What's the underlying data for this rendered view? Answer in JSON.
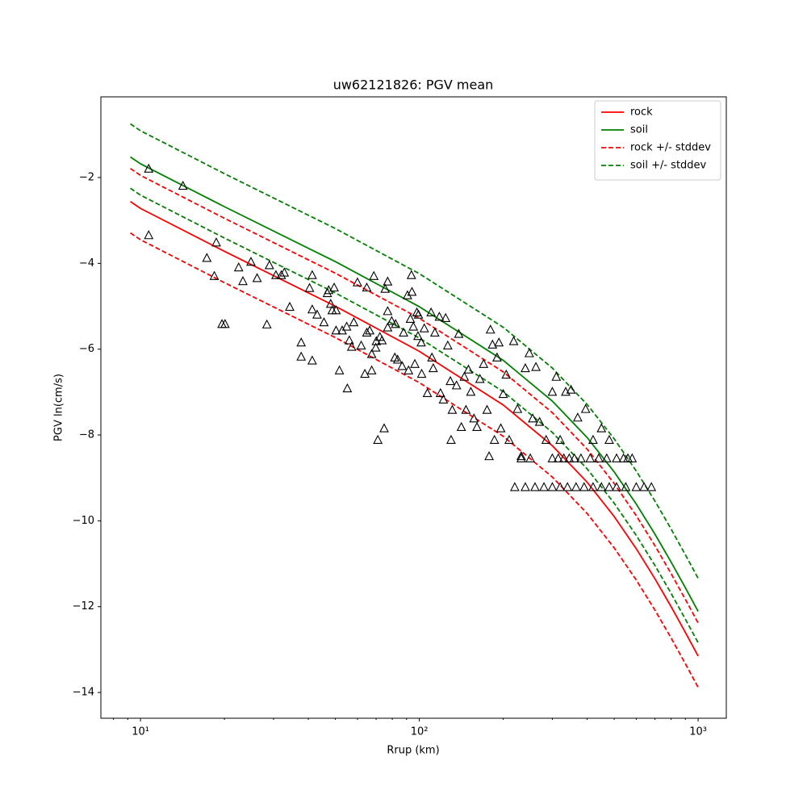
{
  "chart_data": {
    "type": "line",
    "title": "uw62121826: PGV mean",
    "x_label": "Rrup (km)",
    "y_label": "PGV ln(cm/s)",
    "xscale": "log",
    "xlim": [
      7.21,
      1262
    ],
    "ylim": [
      -14.6,
      -0.12
    ],
    "xticks": [
      {
        "value": 10,
        "label": "10¹"
      },
      {
        "value": 100,
        "label": "10²"
      },
      {
        "value": 1000,
        "label": "10³"
      }
    ],
    "xminorticks": [
      8,
      9,
      20,
      30,
      40,
      50,
      60,
      70,
      80,
      90,
      200,
      300,
      400,
      500,
      600,
      700,
      800,
      900
    ],
    "yticks": [
      {
        "value": -14,
        "label": "−14"
      },
      {
        "value": -12,
        "label": "−12"
      },
      {
        "value": -10,
        "label": "−10"
      },
      {
        "value": -8,
        "label": "−8"
      },
      {
        "value": -6,
        "label": "−6"
      },
      {
        "value": -4,
        "label": "−4"
      },
      {
        "value": -2,
        "label": "−2"
      }
    ],
    "legend": "upper right",
    "x": [
      9.2,
      10,
      20,
      50,
      100,
      200,
      300,
      400,
      500,
      600,
      700,
      800,
      900,
      1000
    ],
    "series": [
      {
        "name": "rock",
        "color": "#ff0000",
        "dashed": false,
        "values": [
          -2.56,
          -2.72,
          -3.72,
          -5.0,
          -6.05,
          -7.3,
          -8.25,
          -9.1,
          -9.9,
          -10.65,
          -11.35,
          -12.0,
          -12.6,
          -13.15
        ]
      },
      {
        "name": "soil",
        "color": "#008000",
        "dashed": false,
        "values": [
          -1.52,
          -1.68,
          -2.68,
          -3.96,
          -5.01,
          -6.26,
          -7.21,
          -8.06,
          -8.86,
          -9.61,
          -10.31,
          -10.96,
          -11.56,
          -12.11
        ]
      },
      {
        "name": "rock +/- stddev",
        "color": "#ff0000",
        "dashed": true,
        "upper": [
          -1.79,
          -1.95,
          -2.95,
          -4.23,
          -5.28,
          -6.53,
          -7.48,
          -8.33,
          -9.13,
          -9.88,
          -10.58,
          -11.23,
          -11.83,
          -12.38
        ],
        "lower": [
          -3.29,
          -3.45,
          -4.45,
          -5.73,
          -6.78,
          -8.03,
          -8.98,
          -9.83,
          -10.63,
          -11.38,
          -12.08,
          -12.73,
          -13.33,
          -13.88
        ]
      },
      {
        "name": "soil +/- stddev",
        "color": "#008000",
        "dashed": true,
        "upper": [
          -0.75,
          -0.91,
          -1.91,
          -3.19,
          -4.24,
          -5.49,
          -6.44,
          -7.29,
          -8.09,
          -8.84,
          -9.54,
          -10.19,
          -10.79,
          -11.34
        ],
        "lower": [
          -2.25,
          -2.41,
          -3.41,
          -4.69,
          -5.74,
          -6.99,
          -7.94,
          -8.79,
          -9.59,
          -10.34,
          -11.04,
          -11.69,
          -12.29,
          -12.84
        ]
      }
    ],
    "scatter": {
      "marker": "triangle",
      "color": "#000000",
      "x": [
        10.7,
        14.2,
        10.7,
        17.3,
        18.4,
        18.7,
        19.6,
        20.1,
        22.5,
        23.3,
        24.9,
        26.2,
        28.4,
        29.0,
        30.6,
        32.0,
        32.8,
        34.3,
        37.7,
        37.7,
        40.4,
        41.3,
        41.3,
        41.3,
        43.0,
        45.5,
        46.8,
        47.3,
        48.1,
        48.7,
        49.5,
        50.3,
        50.3,
        51.7,
        52.9,
        54.9,
        55.2,
        56.1,
        57.2,
        58.2,
        60.0,
        61.9,
        63.8,
        64.8,
        64.8,
        66.4,
        67.5,
        67.5,
        68.7,
        69.8,
        70.1,
        71.0,
        72.2,
        73.5,
        74.8,
        75.4,
        77.0,
        77.0,
        77.0,
        79.6,
        81.7,
        82.2,
        83.6,
        86.8,
        87.8,
        90.7,
        91.5,
        92.9,
        93.7,
        94.1,
        95.2,
        96.4,
        98.0,
        98.9,
        99.3,
        101.6,
        102.0,
        104.2,
        106.9,
        110.2,
        111.0,
        112.2,
        113.7,
        118.0,
        119.1,
        122.0,
        124.3,
        126.5,
        129.2,
        130.0,
        131.3,
        136.0,
        138.5,
        141.5,
        145.0,
        147.0,
        150.0,
        153.0,
        157.0,
        161.0,
        165.0,
        170.0,
        175.0,
        178.0,
        180.0,
        183.0,
        186.0,
        190.0,
        193.0,
        196.0,
        200.0,
        205.0,
        210.0,
        218.0,
        225.0,
        232.0,
        240.0,
        248.0,
        255.0,
        262.0,
        270.0,
        285.0,
        300.0,
        310.0,
        320.0,
        335.0,
        350.0,
        370.0,
        395.0,
        420.0,
        450.0,
        480.0,
        232,
        250,
        300,
        315,
        330,
        345,
        360,
        380,
        410,
        440,
        470,
        510,
        540,
        560,
        580,
        220,
        240,
        260,
        280,
        300,
        320,
        340,
        365,
        390,
        420,
        450,
        480,
        510,
        550,
        600,
        640,
        680
      ],
      "y": [
        -1.8,
        -2.2,
        -3.35,
        -3.88,
        -4.3,
        -3.52,
        -5.42,
        -5.42,
        -4.1,
        -4.42,
        -3.97,
        -4.35,
        -5.43,
        -4.05,
        -4.28,
        -4.28,
        -4.22,
        -5.02,
        -5.85,
        -6.18,
        -4.58,
        -4.28,
        -5.08,
        -6.27,
        -5.2,
        -5.38,
        -4.7,
        -4.63,
        -4.95,
        -5.1,
        -4.57,
        -5.1,
        -5.57,
        -6.5,
        -5.57,
        -5.48,
        -6.92,
        -5.8,
        -5.95,
        -5.38,
        -4.45,
        -5.92,
        -6.58,
        -4.57,
        -5.62,
        -5.57,
        -6.12,
        -6.5,
        -4.3,
        -5.97,
        -5.82,
        -8.12,
        -5.72,
        -5.8,
        -7.85,
        -4.6,
        -4.43,
        -5.5,
        -5.12,
        -5.35,
        -6.2,
        -5.42,
        -6.25,
        -6.4,
        -5.62,
        -4.75,
        -6.5,
        -5.3,
        -4.28,
        -4.67,
        -5.48,
        -6.35,
        -5.15,
        -5.7,
        -5.2,
        -5.85,
        -6.58,
        -5.52,
        -7.03,
        -5.15,
        -6.2,
        -6.45,
        -5.62,
        -5.25,
        -7.03,
        -7.18,
        -5.28,
        -5.92,
        -6.75,
        -8.12,
        -7.42,
        -6.85,
        -5.65,
        -7.82,
        -6.65,
        -7.42,
        -6.48,
        -7.0,
        -7.62,
        -7.82,
        -6.7,
        -6.35,
        -7.42,
        -8.5,
        -5.55,
        -5.9,
        -8.12,
        -6.2,
        -5.85,
        -7.85,
        -7.05,
        -6.6,
        -8.12,
        -5.82,
        -7.4,
        -8.5,
        -6.45,
        -6.1,
        -7.62,
        -6.42,
        -7.7,
        -8.12,
        -7.0,
        -6.65,
        -8.12,
        -7.0,
        -6.95,
        -7.6,
        -7.4,
        -8.12,
        -7.85,
        -8.12,
        -8.55,
        -8.55,
        -8.55,
        -8.55,
        -8.55,
        -8.55,
        -8.55,
        -8.55,
        -8.55,
        -8.55,
        -8.55,
        -8.55,
        -8.55,
        -8.55,
        -8.55,
        -9.22,
        -9.22,
        -9.22,
        -9.22,
        -9.22,
        -9.22,
        -9.22,
        -9.22,
        -9.22,
        -9.22,
        -9.22,
        -9.22,
        -9.22,
        -9.22,
        -9.22,
        -9.22,
        -9.22
      ]
    }
  }
}
